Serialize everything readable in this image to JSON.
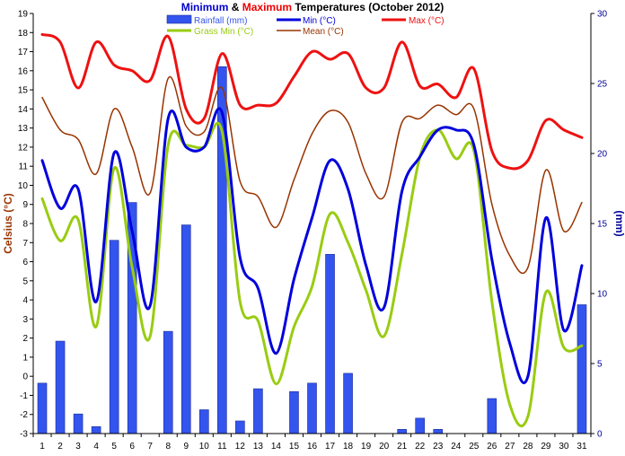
{
  "title": {
    "part_min": "Minimum",
    "amp": " & ",
    "part_max": "Maximum",
    "rest": " Temperatures (October 2012)"
  },
  "colors": {
    "rainfall": "#3355ee",
    "rainfall_edge": "#1a2a99",
    "min": "#0000dd",
    "max": "#ee1111",
    "grass_min": "#99cc11",
    "mean": "#993300",
    "left_axis_label": "#993300",
    "right_axis_label": "#000099",
    "right_ticks": "#000099"
  },
  "chart_data": {
    "type": "bar+line",
    "title": "Minimum & Maximum Temperatures (October 2012)",
    "xlabel": "",
    "ylabel": "Celsius (°C)",
    "y2label": "(mm)",
    "categories": [
      "1",
      "2",
      "3",
      "4",
      "5",
      "6",
      "7",
      "8",
      "9",
      "10",
      "11",
      "12",
      "13",
      "14",
      "15",
      "16",
      "17",
      "18",
      "19",
      "20",
      "21",
      "22",
      "23",
      "24",
      "25",
      "26",
      "27",
      "28",
      "29",
      "30",
      "31"
    ],
    "ylim": [
      -3,
      19
    ],
    "y2lim": [
      0,
      30
    ],
    "yticks": [
      -3,
      -2,
      -1,
      0,
      1,
      2,
      3,
      4,
      5,
      6,
      7,
      8,
      9,
      10,
      11,
      12,
      13,
      14,
      15,
      16,
      17,
      18,
      19
    ],
    "y2ticks": [
      0,
      5,
      10,
      15,
      20,
      25,
      30
    ],
    "grid": false,
    "legend": "top",
    "series": [
      {
        "name": "Rainfall (mm)",
        "kind": "bar",
        "axis": "right",
        "values": [
          3.6,
          6.6,
          1.4,
          0.5,
          13.8,
          16.5,
          0,
          7.3,
          14.9,
          1.7,
          26.2,
          0.9,
          3.2,
          0,
          3.0,
          3.6,
          12.8,
          4.3,
          0,
          0,
          0.3,
          1.1,
          0.3,
          0,
          0,
          2.5,
          0,
          0,
          0,
          0,
          9.2
        ]
      },
      {
        "name": "Min (°C)",
        "kind": "line",
        "axis": "left",
        "values": [
          11.3,
          8.8,
          9.8,
          3.9,
          11.7,
          7.6,
          3.7,
          13.5,
          12.0,
          12.0,
          13.8,
          6.2,
          4.6,
          1.2,
          5.1,
          8.3,
          11.3,
          9.8,
          5.8,
          3.6,
          9.7,
          11.5,
          12.9,
          12.9,
          12.1,
          6.1,
          1.7,
          0.0,
          8.3,
          2.4,
          5.8
        ]
      },
      {
        "name": "Max (°C)",
        "kind": "line",
        "axis": "left",
        "values": [
          17.9,
          17.5,
          15.1,
          17.5,
          16.3,
          16.0,
          15.5,
          17.8,
          14.0,
          13.5,
          16.9,
          14.2,
          14.2,
          14.3,
          15.7,
          17.0,
          16.6,
          16.9,
          15.1,
          15.1,
          17.5,
          15.2,
          15.3,
          14.6,
          16.1,
          11.8,
          10.9,
          11.3,
          13.4,
          12.9,
          12.5
        ]
      },
      {
        "name": "Grass Min (°C)",
        "kind": "line",
        "axis": "left",
        "values": [
          9.3,
          7.1,
          8.2,
          2.6,
          10.9,
          5.7,
          2.1,
          12.1,
          12.1,
          12.0,
          12.8,
          3.9,
          2.9,
          -0.4,
          2.6,
          4.7,
          8.5,
          7.0,
          4.5,
          2.1,
          6.4,
          11.5,
          12.9,
          11.4,
          11.8,
          3.9,
          -1.5,
          -2.1,
          4.4,
          1.5,
          1.6
        ]
      },
      {
        "name": "Mean (°C)",
        "kind": "line",
        "axis": "left",
        "values": [
          14.6,
          12.9,
          12.4,
          10.6,
          14.0,
          12.0,
          9.6,
          15.6,
          13.1,
          12.8,
          15.1,
          10.2,
          9.4,
          7.8,
          10.3,
          12.7,
          13.9,
          13.3,
          10.6,
          9.4,
          13.3,
          13.5,
          14.2,
          13.7,
          14.0,
          9.0,
          6.3,
          5.7,
          10.8,
          7.6,
          9.1
        ]
      }
    ]
  }
}
